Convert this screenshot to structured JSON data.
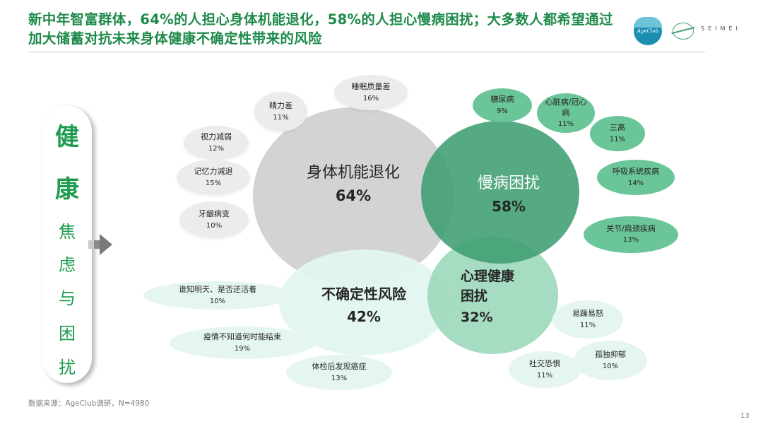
{
  "title": "新中年智富群体，64%的人担心身体机能退化，58%的人担心慢病困扰；大多数人都希望通过加大储蓄对抗未来身体健康不确定性带来的风险",
  "logos": {
    "ageclub": "AgeClub",
    "seimei": "SEIMEI"
  },
  "side": {
    "chars": [
      "健",
      "康",
      "焦",
      "虑",
      "与",
      "困",
      "扰"
    ]
  },
  "main": {
    "body": {
      "label": "身体机能退化",
      "pct": "64%"
    },
    "chronic": {
      "label": "慢病困扰",
      "pct": "58%"
    },
    "uncertainty": {
      "label": "不确定性风险",
      "pct": "42%"
    },
    "mental": {
      "label": "心理健康困扰",
      "pct": "32%"
    }
  },
  "bubbles": {
    "sleep": {
      "label": "睡眠质量差",
      "pct": "16%"
    },
    "energy": {
      "label": "精力差",
      "pct": "11%"
    },
    "vision": {
      "label": "视力减弱",
      "pct": "12%"
    },
    "memory": {
      "label": "记忆力减退",
      "pct": "15%"
    },
    "gum": {
      "label": "牙龈病变",
      "pct": "10%"
    },
    "diabetes": {
      "label": "糖尿病",
      "pct": "9%"
    },
    "heart": {
      "label": "心脏病/冠心病",
      "pct": "11%"
    },
    "three_highs": {
      "label": "三高",
      "pct": "11%"
    },
    "respiratory": {
      "label": "呼吸系统疾病",
      "pct": "14%"
    },
    "joint": {
      "label": "关节/肩颈疾病",
      "pct": "13%"
    },
    "tomorrow": {
      "label": "谁知明天、是否还活着",
      "pct": "10%"
    },
    "epidemic": {
      "label": "疫情不知道何时能结束",
      "pct": "19%"
    },
    "cancer": {
      "label": "体检后发现癌症",
      "pct": "13%"
    },
    "irritable": {
      "label": "易躁易怒",
      "pct": "11%"
    },
    "lonely": {
      "label": "孤独抑郁",
      "pct": "10%"
    },
    "social": {
      "label": "社交恐惧",
      "pct": "11%"
    }
  },
  "footer": {
    "source": "数据来源：AgeClub调研，N=4980",
    "page": "13"
  },
  "colors": {
    "title": "#1e8a4a",
    "grey_circle": "#cfcfcf",
    "chronic_circle": "#3f9e72",
    "uncertainty_circle": "#e3f5ef",
    "mental_circle": "#9cd8bb",
    "green_bubble": "#6ac598",
    "grey_bubble": "#ececec",
    "mint_bubble": "#e5f5ef"
  }
}
